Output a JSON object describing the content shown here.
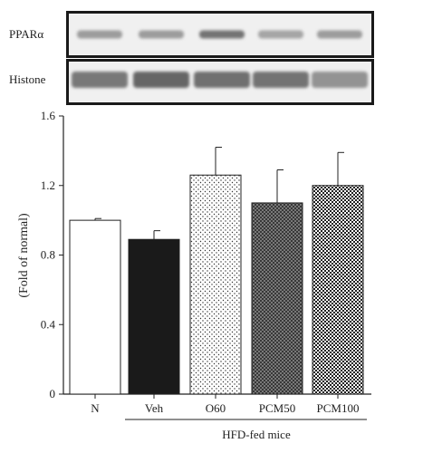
{
  "blots": [
    {
      "label": "PPARα",
      "lanes": [
        {
          "intensity": 0.55,
          "shape": "flat"
        },
        {
          "intensity": 0.55,
          "shape": "flat"
        },
        {
          "intensity": 0.78,
          "shape": "flat"
        },
        {
          "intensity": 0.5,
          "shape": "flat"
        },
        {
          "intensity": 0.55,
          "shape": "flat"
        }
      ]
    },
    {
      "label": "Histone",
      "lanes": [
        {
          "intensity": 0.75,
          "shape": "thick"
        },
        {
          "intensity": 0.85,
          "shape": "thick"
        },
        {
          "intensity": 0.8,
          "shape": "thick"
        },
        {
          "intensity": 0.78,
          "shape": "thick"
        },
        {
          "intensity": 0.6,
          "shape": "thick"
        }
      ]
    }
  ],
  "chart_data": {
    "type": "bar",
    "categories": [
      "N",
      "Veh",
      "O60",
      "PCM50",
      "PCM100"
    ],
    "values": [
      1.0,
      0.89,
      1.26,
      1.1,
      1.2
    ],
    "errors": [
      0.01,
      0.05,
      0.16,
      0.19,
      0.19
    ],
    "fills": [
      "white",
      "black",
      "sparse-dots",
      "dense-crosshatch",
      "checker"
    ],
    "ylabel": "(Fold of normal)",
    "xlabel": "",
    "ylim": [
      0,
      1.6
    ],
    "yticks": [
      "0",
      "0.4",
      "0.8",
      "1.2",
      "1.6"
    ],
    "group_label": "HFD-fed mice",
    "group_categories": [
      "Veh",
      "O60",
      "PCM50",
      "PCM100"
    ],
    "grid": false
  }
}
